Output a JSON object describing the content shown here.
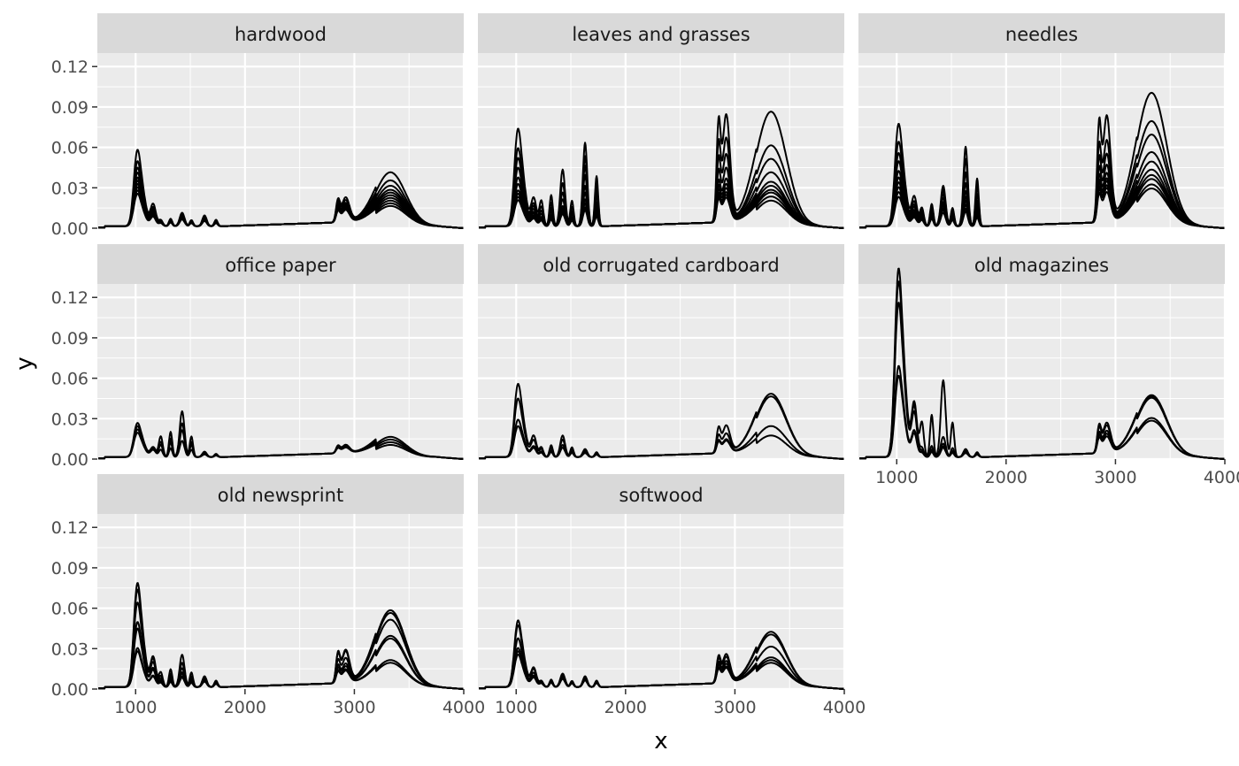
{
  "chart_data": {
    "type": "line",
    "xlabel": "x",
    "ylabel": "y",
    "xlim": [
      650,
      4000
    ],
    "ylim": [
      0,
      0.13
    ],
    "x_ticks": [
      1000,
      2000,
      3000,
      4000
    ],
    "x_tick_labels": [
      "1000",
      "2000",
      "3000",
      "4000"
    ],
    "y_ticks": [
      0,
      0.03,
      0.06,
      0.09,
      0.12
    ],
    "y_tick_labels": [
      "0.00",
      "0.03",
      "0.06",
      "0.09",
      "0.12"
    ],
    "facet_layout": {
      "columns": 3,
      "rows": 3
    },
    "line_color": "#000000",
    "panel_background": "#ebebeb",
    "strip_background": "#d9d9d9",
    "grid": true,
    "panels": [
      {
        "label": "hardwood",
        "peaks": {
          "p1000": [
            0.047,
            0.04,
            0.036,
            0.033,
            0.03,
            0.028,
            0.026,
            0.024,
            0.022,
            0.02
          ],
          "p1430": [
            0.01,
            0.009,
            0.008,
            0.008,
            0.007,
            0.007,
            0.006,
            0.006,
            0.006,
            0.005
          ],
          "p1630": [
            0.008,
            0.007,
            0.006,
            0.006,
            0.005,
            0.005,
            0.005,
            0.004,
            0.004,
            0.004
          ],
          "p2900": [
            0.018,
            0.016,
            0.014,
            0.013,
            0.012,
            0.011,
            0.01,
            0.01,
            0.009,
            0.009
          ],
          "p3340": [
            0.04,
            0.034,
            0.03,
            0.027,
            0.025,
            0.023,
            0.021,
            0.019,
            0.017,
            0.015
          ]
        }
      },
      {
        "label": "leaves and grasses",
        "peaks": {
          "p1000": [
            0.06,
            0.048,
            0.042,
            0.036,
            0.03,
            0.026,
            0.022,
            0.02,
            0.018,
            0.016
          ],
          "p1430": [
            0.042,
            0.032,
            0.025,
            0.02,
            0.015,
            0.013,
            0.012,
            0.011,
            0.01,
            0.009
          ],
          "p1630": [
            0.062,
            0.052,
            0.045,
            0.038,
            0.03,
            0.025,
            0.02,
            0.017,
            0.014,
            0.012
          ],
          "p2900": [
            0.079,
            0.062,
            0.05,
            0.04,
            0.032,
            0.028,
            0.025,
            0.022,
            0.02,
            0.018
          ],
          "p3340": [
            0.085,
            0.06,
            0.05,
            0.04,
            0.033,
            0.03,
            0.027,
            0.025,
            0.022,
            0.019
          ]
        }
      },
      {
        "label": "needles",
        "peaks": {
          "p1000": [
            0.063,
            0.052,
            0.045,
            0.04,
            0.034,
            0.03,
            0.027,
            0.024,
            0.021,
            0.018
          ],
          "p1430": [
            0.03,
            0.027,
            0.024,
            0.021,
            0.018,
            0.016,
            0.015,
            0.013,
            0.012,
            0.01
          ],
          "p1630": [
            0.059,
            0.05,
            0.04,
            0.032,
            0.026,
            0.022,
            0.019,
            0.016,
            0.013,
            0.011
          ],
          "p2900": [
            0.078,
            0.06,
            0.05,
            0.042,
            0.036,
            0.032,
            0.03,
            0.027,
            0.025,
            0.022
          ],
          "p3340": [
            0.099,
            0.078,
            0.068,
            0.055,
            0.048,
            0.042,
            0.038,
            0.035,
            0.031,
            0.028
          ]
        }
      },
      {
        "label": "office paper",
        "peaks": {
          "p1000": [
            0.021,
            0.019,
            0.017,
            0.015
          ],
          "p1430": [
            0.034,
            0.025,
            0.02,
            0.012
          ],
          "p1630": [
            0.004,
            0.003,
            0.003,
            0.002
          ],
          "p2900": [
            0.006,
            0.005,
            0.005,
            0.004
          ],
          "p3340": [
            0.015,
            0.013,
            0.011,
            0.009
          ]
        }
      },
      {
        "label": "old corrugated cardboard",
        "peaks": {
          "p1000": [
            0.045,
            0.036,
            0.023,
            0.019
          ],
          "p1430": [
            0.016,
            0.013,
            0.009,
            0.007
          ],
          "p1630": [
            0.006,
            0.005,
            0.004,
            0.003
          ],
          "p2900": [
            0.02,
            0.014,
            0.01,
            0.009
          ],
          "p3340": [
            0.047,
            0.045,
            0.023,
            0.016
          ]
        }
      },
      {
        "label": "old magazines",
        "peaks": {
          "p1000": [
            0.116,
            0.108,
            0.095,
            0.056,
            0.05
          ],
          "p1430": [
            0.057,
            0.015,
            0.01,
            0.008,
            0.007
          ],
          "p1630": [
            0.006,
            0.005,
            0.004,
            0.004,
            0.003
          ],
          "p2900": [
            0.022,
            0.02,
            0.016,
            0.014,
            0.012
          ],
          "p3340": [
            0.046,
            0.045,
            0.044,
            0.029,
            0.027
          ]
        }
      },
      {
        "label": "old newsprint",
        "peaks": {
          "p1000": [
            0.064,
            0.06,
            0.052,
            0.04,
            0.036,
            0.024,
            0.022
          ],
          "p1430": [
            0.024,
            0.018,
            0.014,
            0.011,
            0.01,
            0.008,
            0.007
          ],
          "p1630": [
            0.008,
            0.007,
            0.006,
            0.006,
            0.005,
            0.005,
            0.004
          ],
          "p2900": [
            0.024,
            0.023,
            0.018,
            0.014,
            0.012,
            0.01,
            0.009
          ],
          "p3340": [
            0.057,
            0.055,
            0.05,
            0.038,
            0.036,
            0.02,
            0.018
          ]
        }
      },
      {
        "label": "softwood",
        "peaks": {
          "p1000": [
            0.041,
            0.038,
            0.03,
            0.024,
            0.022,
            0.02
          ],
          "p1430": [
            0.01,
            0.009,
            0.008,
            0.008,
            0.007,
            0.006
          ],
          "p1630": [
            0.008,
            0.007,
            0.006,
            0.006,
            0.005,
            0.005
          ],
          "p2900": [
            0.021,
            0.019,
            0.016,
            0.014,
            0.012,
            0.011
          ],
          "p3340": [
            0.041,
            0.039,
            0.03,
            0.022,
            0.02,
            0.018
          ]
        }
      }
    ]
  }
}
